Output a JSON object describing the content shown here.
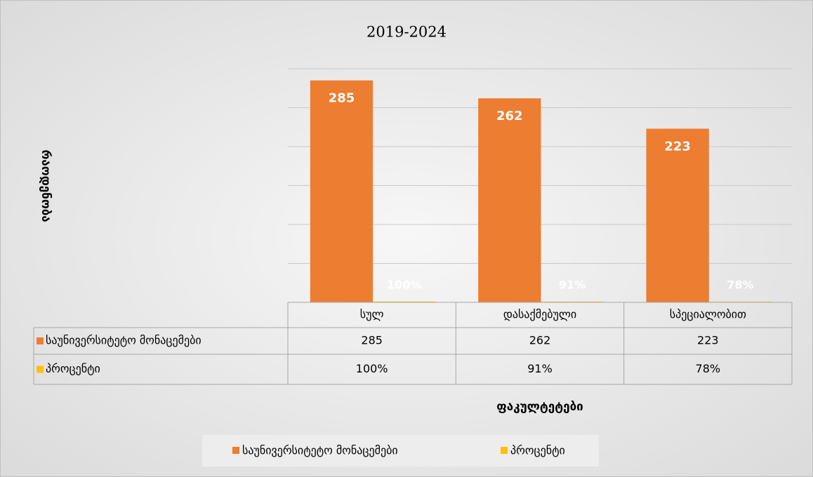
{
  "chart_data": {
    "type": "bar",
    "title": "2019-2024",
    "y_label": "რაოდენობა",
    "x_label": "ფაკულტეტები",
    "categories": [
      "სულ",
      "დასაქმებული",
      "სპეციალობით"
    ],
    "series": [
      {
        "name": "საუნივერსიტეტო მონაცემები",
        "color": "#ED7D31",
        "values": [
          285,
          262,
          223
        ]
      },
      {
        "name": "პროცენტი",
        "color": "#FFC000",
        "values": [
          1,
          0.91,
          0.78
        ],
        "value_labels": [
          "100%",
          "91%",
          "78%"
        ]
      }
    ],
    "ylim": [
      0,
      300
    ],
    "yticks": [
      0,
      50,
      100,
      150,
      200,
      250,
      300
    ],
    "grid": true,
    "legend": "bottom"
  }
}
